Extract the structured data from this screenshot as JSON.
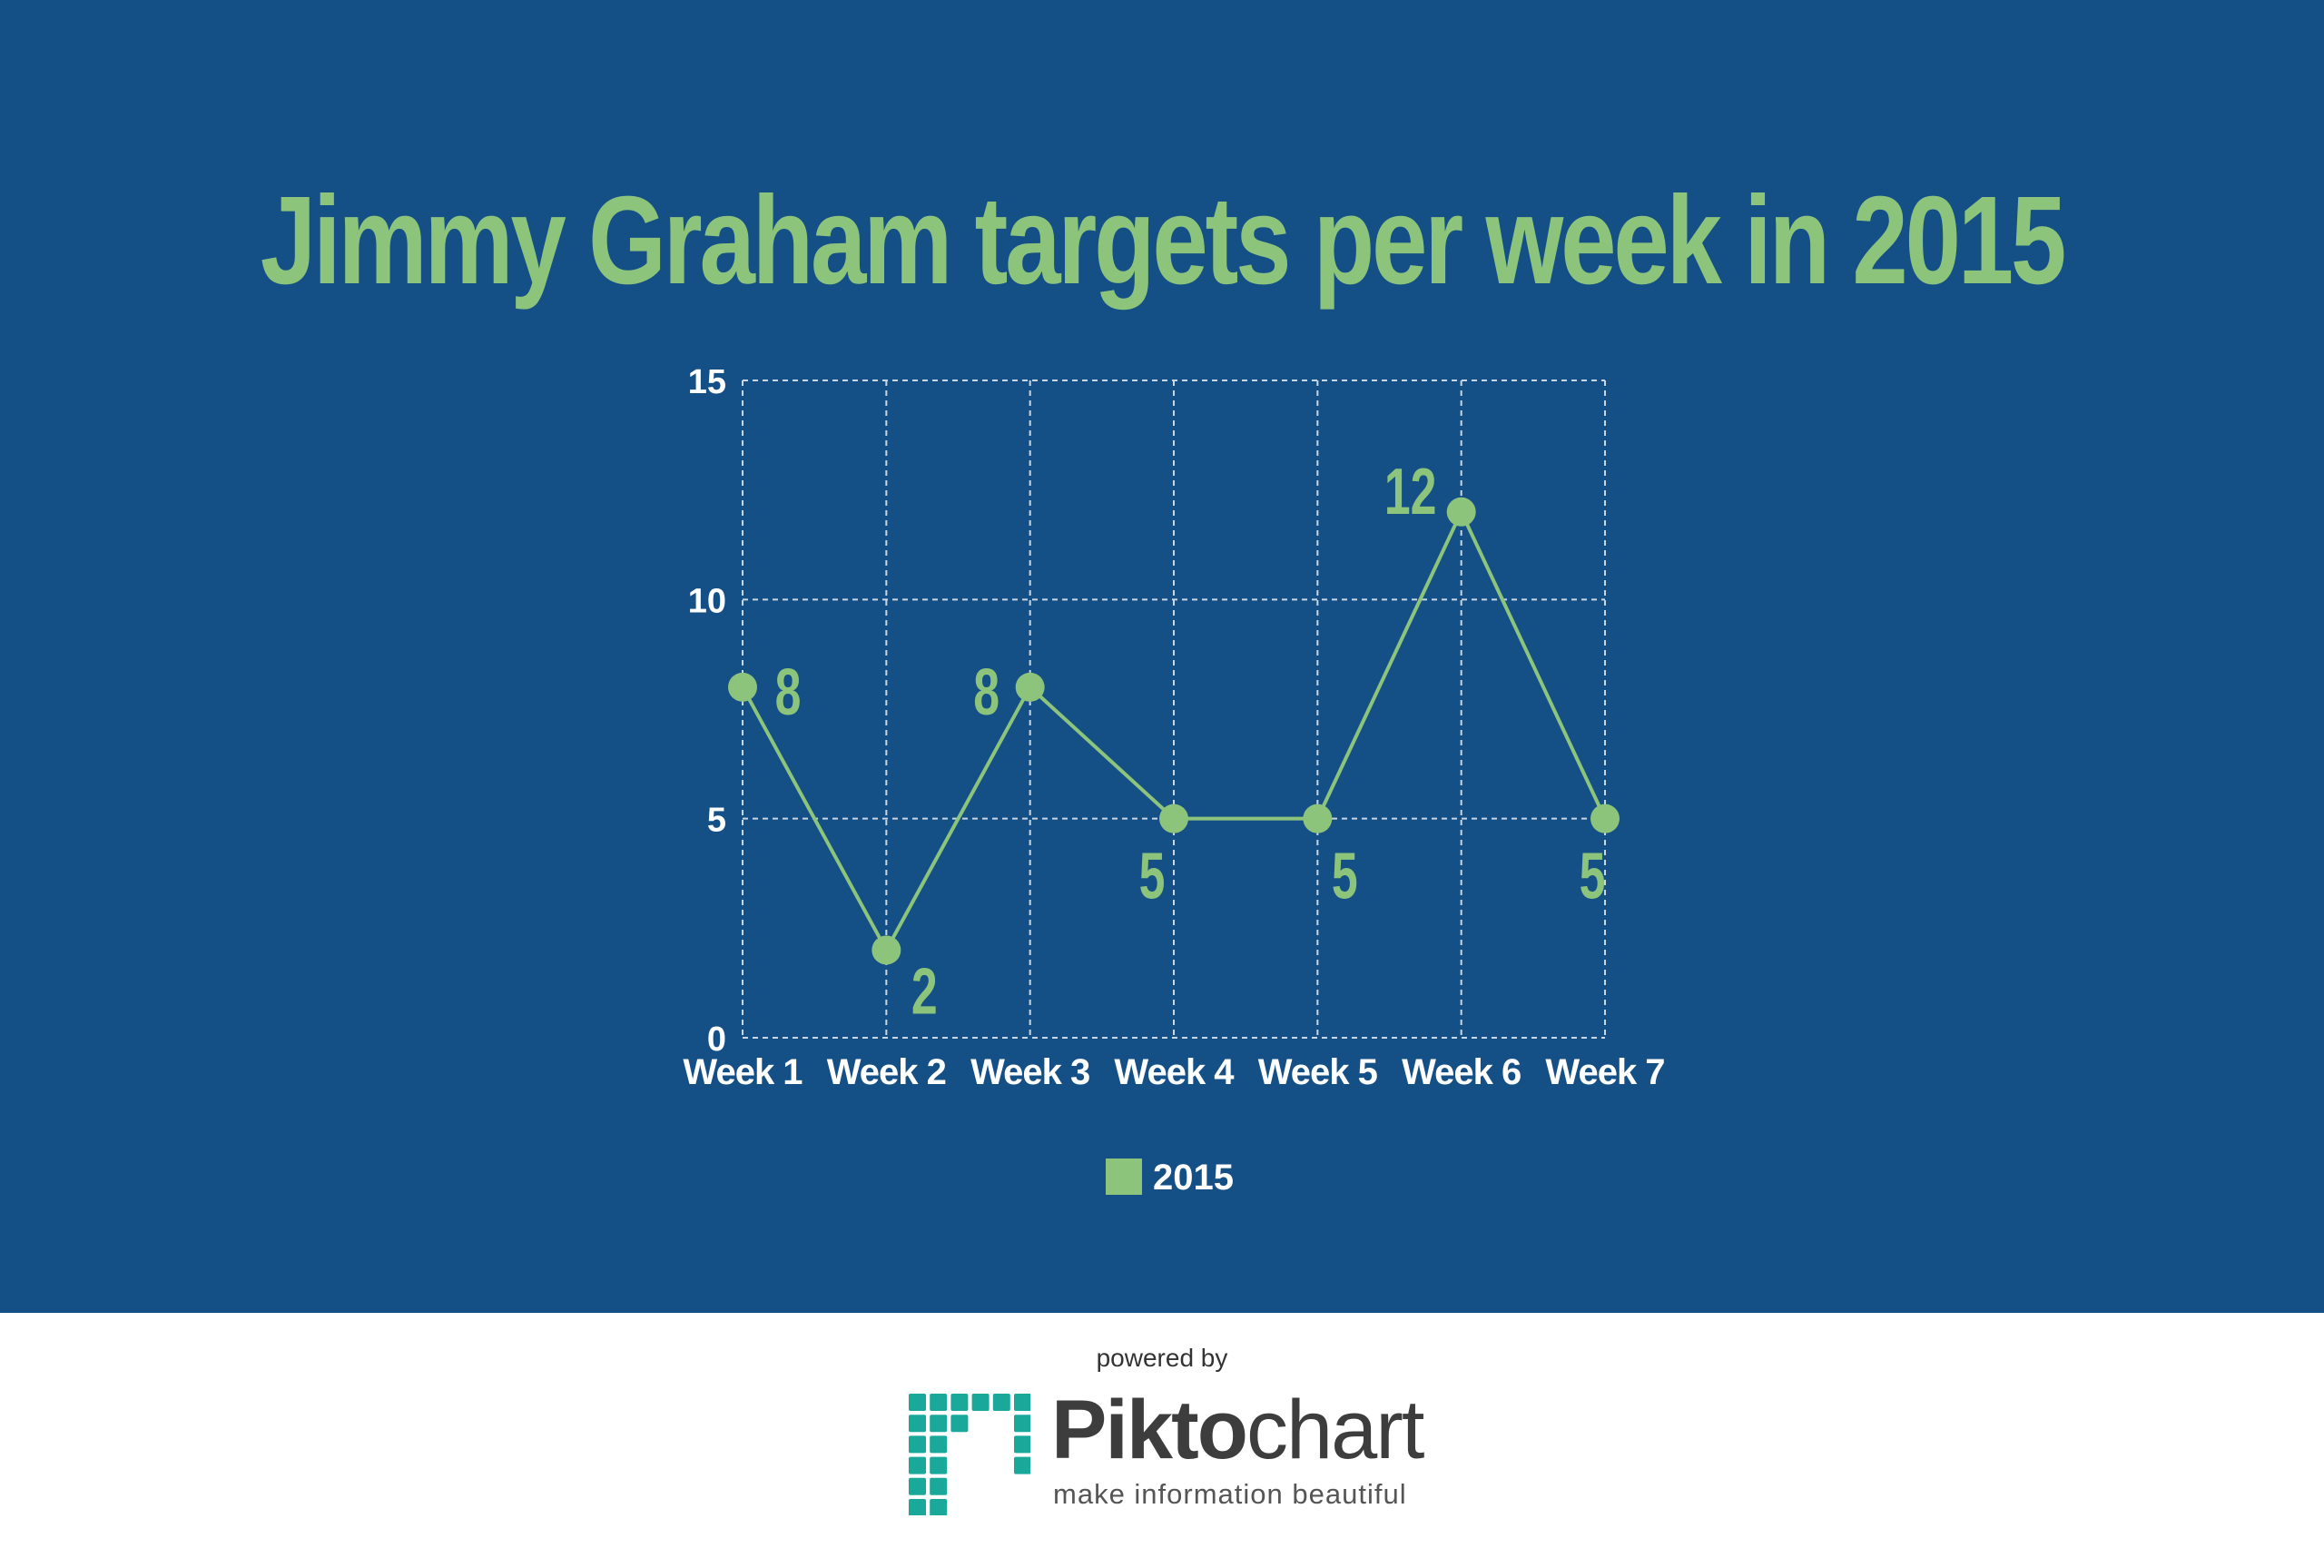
{
  "colors": {
    "background": "#144f86",
    "accent": "#8dc47c",
    "grid": "#c9d6e4",
    "axis_text": "#ffffff",
    "logo": "#1aa89a"
  },
  "footer": {
    "powered_by": "powered by",
    "brand_bold": "Pikto",
    "brand_light": "chart",
    "tagline": "make information beautiful",
    "logo_icon": "piktochart-logo-icon"
  },
  "chart_data": {
    "type": "line",
    "title": "Jimmy Graham targets per week in 2015",
    "categories": [
      "Week 1",
      "Week 2",
      "Week 3",
      "Week 4",
      "Week 5",
      "Week 6",
      "Week 7"
    ],
    "series": [
      {
        "name": "2015",
        "values": [
          8,
          2,
          8,
          5,
          5,
          12,
          5
        ]
      }
    ],
    "ylim": [
      0,
      15
    ],
    "yticks": [
      0,
      5,
      10,
      15
    ],
    "xlabel": "",
    "ylabel": "",
    "grid": true,
    "legend": "bottom-center",
    "data_labels": true
  }
}
